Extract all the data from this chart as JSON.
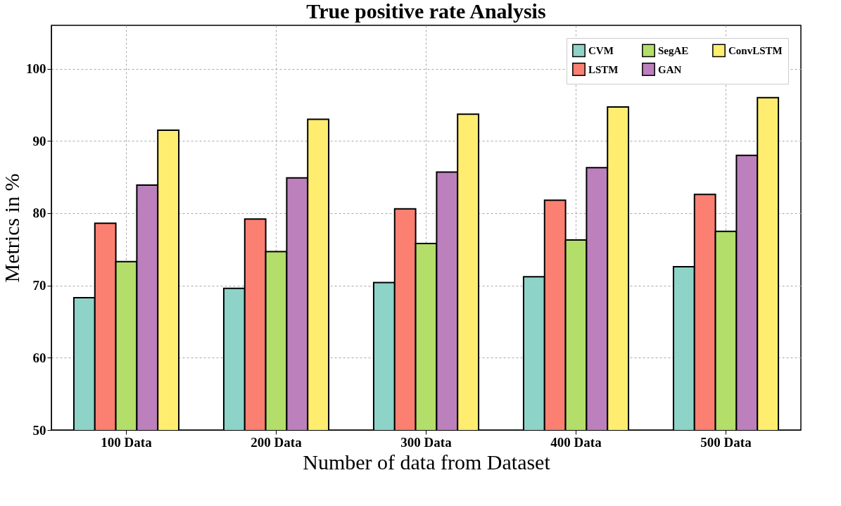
{
  "chart_data": {
    "type": "bar",
    "title": "True positive rate Analysis",
    "xlabel": "Number of data from Dataset",
    "ylabel": "Metrics in %",
    "categories": [
      "100 Data",
      "200 Data",
      "300 Data",
      "400 Data",
      "500 Data"
    ],
    "series": [
      {
        "name": "CVM",
        "color": "#8dd3c7",
        "values": [
          68.3,
          69.6,
          70.4,
          71.2,
          72.6
        ]
      },
      {
        "name": "LSTM",
        "color": "#fb8072",
        "values": [
          78.6,
          79.2,
          80.6,
          81.8,
          82.6
        ]
      },
      {
        "name": "SegAE",
        "color": "#b3de69",
        "values": [
          73.3,
          74.7,
          75.8,
          76.3,
          77.5
        ]
      },
      {
        "name": "GAN",
        "color": "#bc80bd",
        "values": [
          83.9,
          84.9,
          85.7,
          86.3,
          88.0
        ]
      },
      {
        "name": "ConvLSTM",
        "color": "#ffed6f",
        "values": [
          91.5,
          93.0,
          93.7,
          94.7,
          96.0
        ]
      }
    ],
    "ylim": [
      50,
      106
    ],
    "yticks": [
      50,
      60,
      70,
      80,
      90,
      100
    ],
    "grid": true,
    "legend": "top right"
  }
}
